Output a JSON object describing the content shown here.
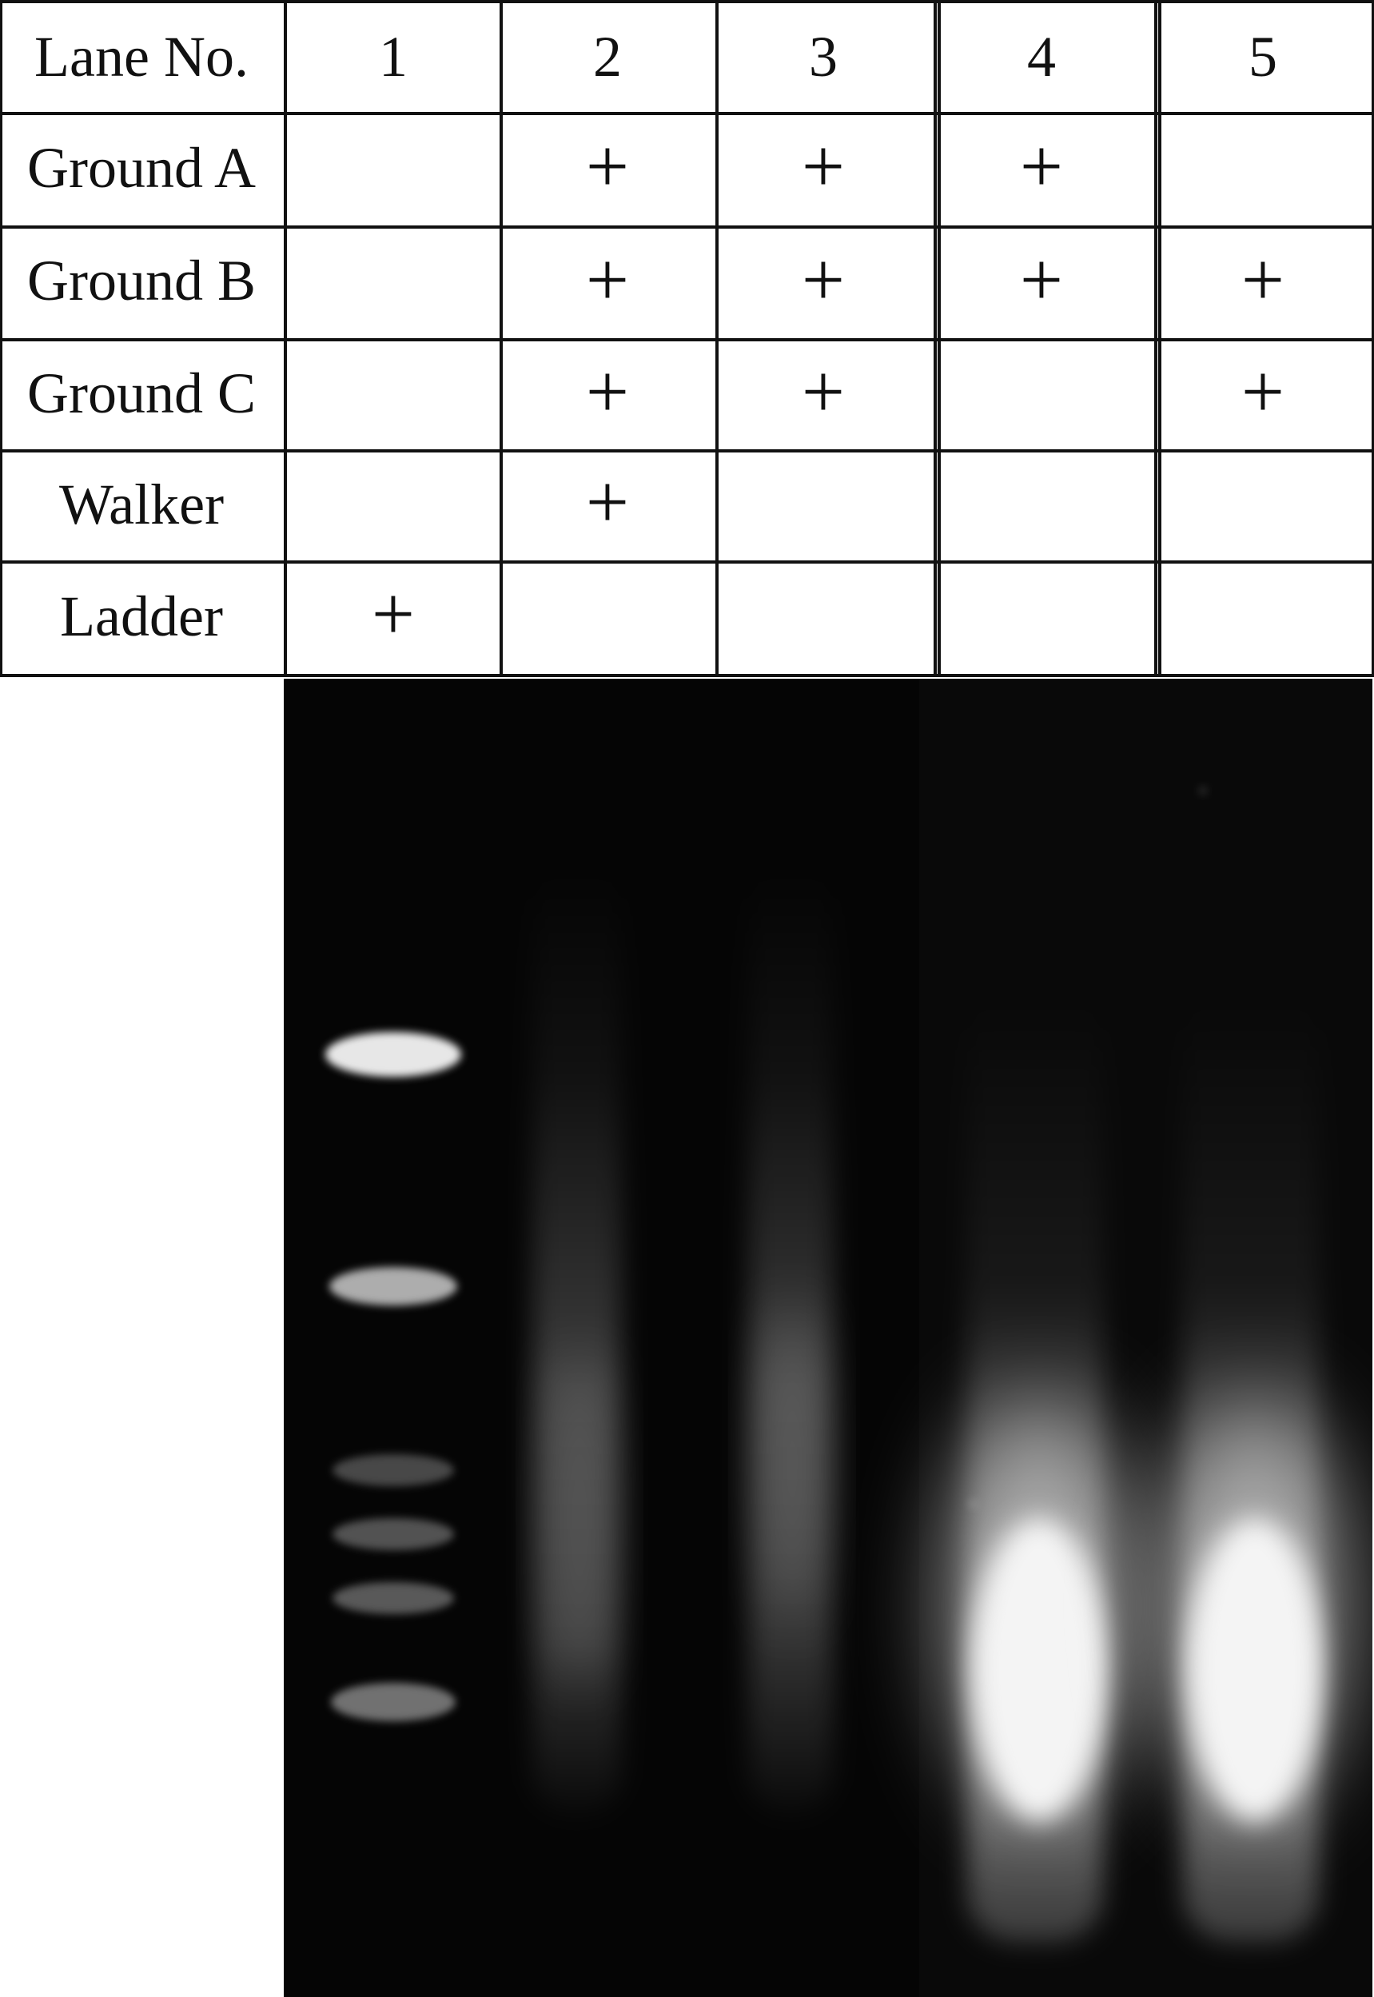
{
  "table": {
    "header_label": "Lane No.",
    "lanes": [
      "1",
      "2",
      "3",
      "4",
      "5"
    ],
    "rows": [
      {
        "label": "Ground A",
        "marks": [
          "",
          "+",
          "+",
          "+",
          ""
        ]
      },
      {
        "label": "Ground B",
        "marks": [
          "",
          "+",
          "+",
          "+",
          "+"
        ]
      },
      {
        "label": "Ground C",
        "marks": [
          "",
          "+",
          "+",
          "",
          "+"
        ]
      },
      {
        "label": "Walker",
        "marks": [
          "",
          "+",
          "",
          "",
          ""
        ]
      },
      {
        "label": "Ladder",
        "marks": [
          "+",
          "",
          "",
          "",
          ""
        ]
      }
    ]
  },
  "gel": {
    "background": "#050505",
    "band_color": "#f4f4f4",
    "ladder_band_count": 6
  }
}
